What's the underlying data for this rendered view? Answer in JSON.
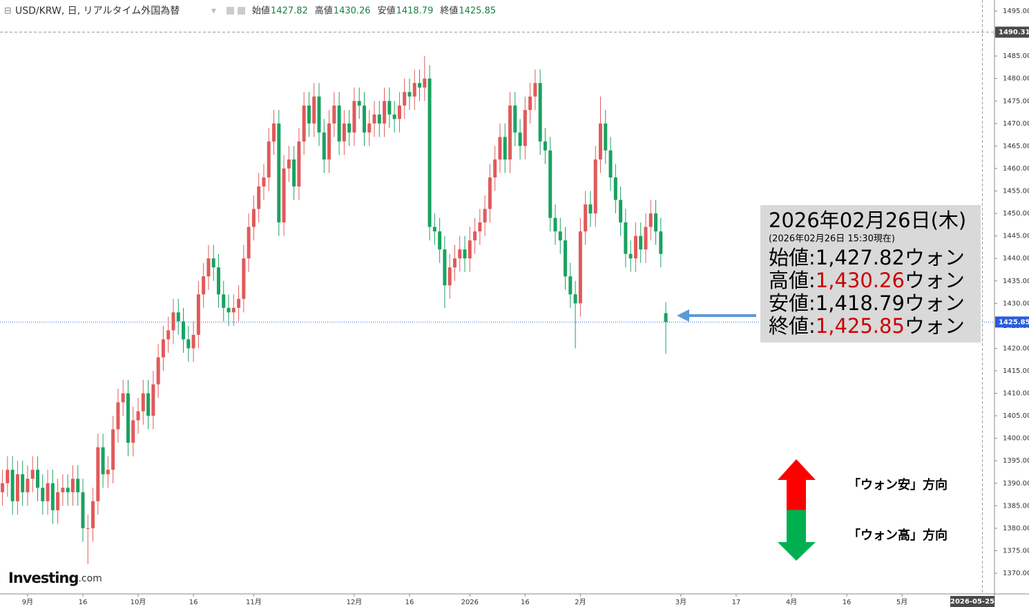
{
  "chart_data": {
    "type": "candlestick",
    "title": "USD/KRW, 日, リアルタイム外国為替",
    "ohlc": [
      {
        "label": "始値",
        "value": 1427.82
      },
      {
        "label": "高値",
        "value": 1430.26
      },
      {
        "label": "安値",
        "value": 1418.79
      },
      {
        "label": "終値",
        "value": 1425.85
      }
    ],
    "up_color": "#e05a5a",
    "down_color": "#1aa260",
    "xlim": [
      -5.49,
      192.4
    ],
    "ylim": [
      1365.4,
      1497.46
    ],
    "xticks": [
      {
        "value": 0,
        "label": "9月"
      },
      {
        "value": 11,
        "label": "16"
      },
      {
        "value": 22,
        "label": "10月"
      },
      {
        "value": 33,
        "label": "16"
      },
      {
        "value": 45,
        "label": "11月"
      },
      {
        "value": 65,
        "label": "12月"
      },
      {
        "value": 76,
        "label": "16"
      },
      {
        "value": 88,
        "label": "2026"
      },
      {
        "value": 99,
        "label": "16"
      },
      {
        "value": 110,
        "label": "2月"
      },
      {
        "value": 130,
        "label": "3月"
      },
      {
        "value": 141,
        "label": "17"
      },
      {
        "value": 152,
        "label": "4月"
      },
      {
        "value": 163,
        "label": "16"
      },
      {
        "value": 174,
        "label": "5月"
      }
    ],
    "yticks": [
      {
        "value": 1370,
        "label": "1370.00"
      },
      {
        "value": 1375,
        "label": "1375.00"
      },
      {
        "value": 1380,
        "label": "1380.00"
      },
      {
        "value": 1385,
        "label": "1385.00"
      },
      {
        "value": 1390,
        "label": "1390.00"
      },
      {
        "value": 1395,
        "label": "1395.00"
      },
      {
        "value": 1400,
        "label": "1400.00"
      },
      {
        "value": 1405,
        "label": "1405.00"
      },
      {
        "value": 1410,
        "label": "1410.00"
      },
      {
        "value": 1415,
        "label": "1415.00"
      },
      {
        "value": 1420,
        "label": "1420.00"
      },
      {
        "value": 1425,
        "label": "1425.00"
      },
      {
        "value": 1430,
        "label": "1430.00"
      },
      {
        "value": 1435,
        "label": "1435.00"
      },
      {
        "value": 1440,
        "label": "1440.00"
      },
      {
        "value": 1445,
        "label": "1445.00"
      },
      {
        "value": 1450,
        "label": "1450.00"
      },
      {
        "value": 1455,
        "label": "1455.00"
      },
      {
        "value": 1460,
        "label": "1460.00"
      },
      {
        "value": 1465,
        "label": "1465.00"
      },
      {
        "value": 1470,
        "label": "1470.00"
      },
      {
        "value": 1475,
        "label": "1475.00"
      },
      {
        "value": 1480,
        "label": "1480.00"
      },
      {
        "value": 1485,
        "label": "1485.00"
      },
      {
        "value": 1490,
        "label": "1490.00"
      },
      {
        "value": 1495,
        "label": "1495.00"
      }
    ],
    "crosshair": {
      "x": 190,
      "x_label": "2026-05-25",
      "y": 1490.31
    },
    "last_price": {
      "value": 1425.85,
      "color": "#2a5cdb"
    },
    "candles": {
      "x": [
        -5,
        -4,
        -3,
        -2,
        -1,
        0,
        1,
        2,
        3,
        4,
        5,
        6,
        7,
        8,
        9,
        10,
        11,
        12,
        13,
        14,
        15,
        16,
        17,
        18,
        19,
        20,
        21,
        22,
        23,
        24,
        25,
        26,
        27,
        28,
        29,
        30,
        31,
        32,
        33,
        34,
        35,
        36,
        37,
        38,
        39,
        40,
        41,
        42,
        43,
        44,
        45,
        46,
        47,
        48,
        49,
        50,
        51,
        52,
        53,
        54,
        55,
        56,
        57,
        58,
        59,
        60,
        61,
        62,
        63,
        64,
        65,
        66,
        67,
        68,
        69,
        70,
        71,
        72,
        73,
        74,
        75,
        76,
        77,
        78,
        79,
        80,
        81,
        82,
        83,
        84,
        85,
        86,
        87,
        88,
        89,
        90,
        91,
        92,
        93,
        94,
        95,
        96,
        97,
        98,
        99,
        100,
        101,
        102,
        103,
        104,
        105,
        106,
        107,
        108,
        109,
        110,
        111,
        112,
        113,
        114,
        115,
        116,
        117,
        118,
        119,
        120,
        121,
        122,
        123,
        124,
        125,
        126,
        127
      ],
      "open": [
        1388,
        1390,
        1393,
        1386,
        1392,
        1388,
        1391,
        1393,
        1389,
        1386,
        1390,
        1384,
        1388,
        1389,
        1388,
        1391,
        1388,
        1380,
        1380,
        1386,
        1398,
        1392,
        1393,
        1402,
        1408,
        1410,
        1399,
        1404,
        1406,
        1410,
        1405,
        1412,
        1418,
        1422,
        1424,
        1428,
        1426,
        1422,
        1420,
        1423,
        1432,
        1436,
        1440,
        1438,
        1432,
        1429,
        1428,
        1429,
        1431,
        1440,
        1447,
        1451,
        1456,
        1458,
        1466,
        1470,
        1448,
        1460,
        1462,
        1456,
        1466,
        1474,
        1470,
        1476,
        1468,
        1462,
        1470,
        1474,
        1466,
        1470,
        1468,
        1475,
        1474,
        1468,
        1470,
        1472,
        1470,
        1475,
        1472,
        1471,
        1474,
        1477,
        1476,
        1479,
        1478,
        1480,
        1447,
        1446,
        1442,
        1434,
        1438,
        1440,
        1442,
        1440,
        1444,
        1446,
        1448,
        1451,
        1458,
        1462,
        1467,
        1462,
        1474,
        1468,
        1465,
        1473,
        1476,
        1479,
        1466,
        1464,
        1449,
        1446,
        1444,
        1436,
        1432,
        1430,
        1446,
        1452,
        1450,
        1462,
        1470,
        1464,
        1458,
        1453,
        1448,
        1441,
        1440,
        1445,
        1442,
        1447,
        1450,
        1446,
        1427.82
      ],
      "high": [
        1393,
        1396,
        1396,
        1395,
        1395,
        1394,
        1396,
        1396,
        1392,
        1393,
        1393,
        1391,
        1392,
        1392,
        1394,
        1394,
        1391,
        1383,
        1389,
        1401,
        1401,
        1396,
        1405,
        1411,
        1413,
        1413,
        1407,
        1409,
        1413,
        1413,
        1415,
        1421,
        1425,
        1427,
        1431,
        1431,
        1429,
        1425,
        1426,
        1435,
        1439,
        1443,
        1443,
        1441,
        1435,
        1432,
        1432,
        1434,
        1443,
        1450,
        1454,
        1459,
        1461,
        1469,
        1473,
        1473,
        1463,
        1465,
        1465,
        1469,
        1477,
        1477,
        1479,
        1479,
        1471,
        1473,
        1477,
        1477,
        1473,
        1473,
        1478,
        1478,
        1477,
        1473,
        1475,
        1475,
        1478,
        1478,
        1475,
        1477,
        1480,
        1480,
        1482,
        1482,
        1485,
        1483,
        1450,
        1449,
        1445,
        1441,
        1443,
        1445,
        1445,
        1447,
        1449,
        1451,
        1454,
        1461,
        1465,
        1470,
        1470,
        1477,
        1477,
        1471,
        1476,
        1479,
        1482,
        1482,
        1469,
        1467,
        1452,
        1449,
        1447,
        1439,
        1435,
        1449,
        1455,
        1455,
        1465,
        1476,
        1473,
        1467,
        1461,
        1456,
        1451,
        1444,
        1448,
        1448,
        1450,
        1453,
        1453,
        1449,
        1430.26
      ],
      "low": [
        1385,
        1387,
        1383,
        1383,
        1385,
        1385,
        1388,
        1386,
        1383,
        1383,
        1381,
        1381,
        1385,
        1385,
        1385,
        1385,
        1377,
        1372,
        1377,
        1383,
        1389,
        1389,
        1390,
        1399,
        1405,
        1396,
        1396,
        1401,
        1403,
        1402,
        1402,
        1409,
        1415,
        1419,
        1421,
        1423,
        1419,
        1417,
        1417,
        1420,
        1429,
        1433,
        1435,
        1429,
        1426,
        1425,
        1425,
        1426,
        1428,
        1437,
        1444,
        1448,
        1453,
        1455,
        1463,
        1445,
        1445,
        1457,
        1453,
        1453,
        1463,
        1467,
        1467,
        1465,
        1459,
        1459,
        1467,
        1463,
        1463,
        1465,
        1465,
        1471,
        1465,
        1465,
        1467,
        1467,
        1467,
        1469,
        1468,
        1468,
        1471,
        1473,
        1473,
        1475,
        1475,
        1444,
        1443,
        1439,
        1429,
        1431,
        1435,
        1437,
        1437,
        1437,
        1441,
        1443,
        1445,
        1448,
        1455,
        1459,
        1459,
        1459,
        1465,
        1462,
        1462,
        1470,
        1473,
        1463,
        1461,
        1446,
        1443,
        1441,
        1433,
        1429,
        1420,
        1427,
        1443,
        1447,
        1447,
        1459,
        1461,
        1455,
        1450,
        1445,
        1438,
        1437,
        1437,
        1439,
        1439,
        1444,
        1443,
        1438,
        1418.79
      ],
      "close": [
        1390,
        1393,
        1386,
        1392,
        1388,
        1391,
        1393,
        1389,
        1386,
        1390,
        1384,
        1388,
        1389,
        1388,
        1391,
        1388,
        1380,
        1380,
        1386,
        1398,
        1392,
        1393,
        1402,
        1408,
        1410,
        1399,
        1404,
        1406,
        1410,
        1405,
        1412,
        1418,
        1422,
        1424,
        1428,
        1426,
        1422,
        1420,
        1423,
        1432,
        1436,
        1440,
        1438,
        1432,
        1429,
        1428,
        1429,
        1431,
        1440,
        1447,
        1451,
        1456,
        1458,
        1466,
        1470,
        1448,
        1460,
        1462,
        1456,
        1466,
        1474,
        1470,
        1476,
        1468,
        1462,
        1470,
        1474,
        1466,
        1470,
        1468,
        1475,
        1474,
        1468,
        1470,
        1472,
        1470,
        1475,
        1472,
        1471,
        1474,
        1477,
        1476,
        1479,
        1478,
        1480,
        1447,
        1446,
        1442,
        1434,
        1438,
        1440,
        1442,
        1440,
        1444,
        1446,
        1448,
        1451,
        1458,
        1462,
        1467,
        1462,
        1474,
        1468,
        1465,
        1473,
        1476,
        1479,
        1466,
        1464,
        1449,
        1446,
        1444,
        1436,
        1432,
        1430,
        1446,
        1452,
        1450,
        1462,
        1470,
        1464,
        1458,
        1453,
        1448,
        1441,
        1440,
        1445,
        1442,
        1447,
        1450,
        1446,
        1441,
        1425.85
      ]
    },
    "info_box": {
      "date": "2026年02月26日(木)",
      "as_of": "(2026年02月26日 15:30現在)",
      "unit": "ウォン",
      "rows": [
        {
          "label": "始値:",
          "value": 1427.82,
          "value_label": "1,427.82",
          "color": "#000000"
        },
        {
          "label": "高値:",
          "value": 1430.26,
          "value_label": "1,430.26",
          "color": "#cc0000"
        },
        {
          "label": "安値:",
          "value": 1418.79,
          "value_label": "1,418.79",
          "color": "#000000"
        },
        {
          "label": "終値:",
          "value": 1425.85,
          "value_label": "1,425.85",
          "color": "#cc0000"
        }
      ]
    },
    "direction": {
      "up": "「ウォン安」方向",
      "down": "「ウォン高」方向"
    },
    "logo": {
      "name": "Investing",
      "suffix": ".com"
    }
  }
}
